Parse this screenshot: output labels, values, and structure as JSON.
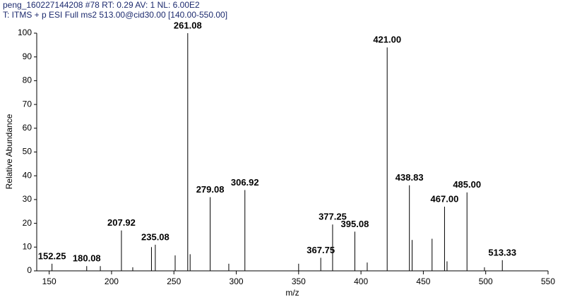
{
  "header": {
    "line1": "peng_160227144208 #78  RT: 0.29  AV: 1  NL: 6.00E2",
    "line2": "T: ITMS + p ESI Full ms2 513.00@cid30.00 [140.00-550.00]"
  },
  "chart_data": {
    "type": "stem",
    "x_label": "m/z",
    "y_label": "Relative Abundance",
    "x": [
      152.25,
      180.08,
      191,
      207.92,
      217,
      232,
      235.08,
      251,
      261.08,
      263,
      279.08,
      294,
      306.92,
      350,
      367.75,
      377.25,
      395.08,
      405,
      421.0,
      438.83,
      441,
      457,
      467.0,
      469,
      485.0,
      499,
      513.33
    ],
    "x_labels": [
      "152.25",
      "180.08",
      null,
      "207.92",
      null,
      null,
      "235.08",
      null,
      "261.08",
      null,
      "279.08",
      null,
      "306.92",
      null,
      "367.75",
      "377.25",
      "395.08",
      null,
      "421.00",
      "438.83",
      null,
      null,
      "467.00",
      null,
      "485.00",
      null,
      "513.33"
    ],
    "values": [
      3,
      2,
      2,
      17,
      1.5,
      10,
      11,
      6.5,
      100,
      7,
      31,
      3,
      34,
      3,
      5.5,
      19.5,
      16.5,
      3.5,
      94,
      36,
      13,
      13.5,
      27,
      4,
      33,
      1.5,
      4.5
    ],
    "color": "#000000",
    "xlim": [
      140,
      550
    ],
    "xticks": [
      150,
      200,
      250,
      300,
      350,
      400,
      450,
      500,
      550
    ],
    "ylim": [
      0,
      100
    ],
    "yticks": [
      0,
      10,
      20,
      30,
      40,
      50,
      60,
      70,
      80,
      90,
      100
    ]
  }
}
